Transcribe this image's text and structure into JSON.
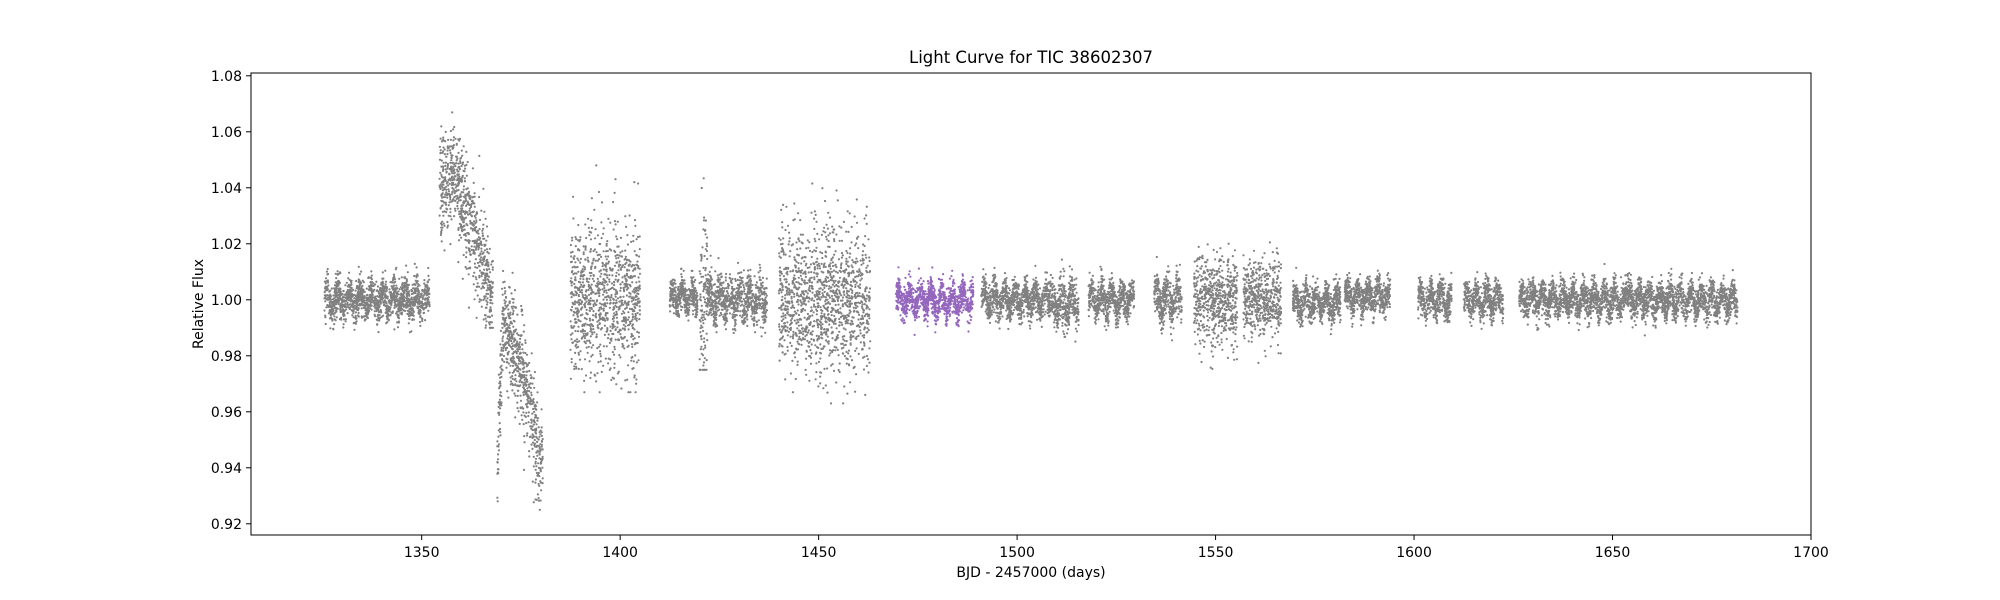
{
  "chart_data": {
    "type": "scatter",
    "title": "Light Curve for TIC 38602307",
    "xlabel": "BJD - 2457000 (days)",
    "ylabel": "Relative Flux",
    "xlim": [
      1307,
      1700
    ],
    "ylim": [
      0.916,
      1.081
    ],
    "xticks": [
      1350,
      1400,
      1450,
      1500,
      1550,
      1600,
      1650,
      1700
    ],
    "yticks": [
      0.92,
      0.94,
      0.96,
      0.98,
      1.0,
      1.02,
      1.04,
      1.06,
      1.08
    ],
    "ytick_decimals": 2,
    "grid": false,
    "legend": "none",
    "colors": {
      "default": "#808080",
      "highlight": "#9467bd"
    },
    "series": [
      {
        "highlighted": false,
        "segments": [
          {
            "x_start": 1325.5,
            "x_end": 1352.0,
            "base": 1.0,
            "scatter": 0.0035,
            "osc_amp": 0.003,
            "osc_period": 2.8
          },
          {
            "x_start": 1354.5,
            "x_end": 1368.0,
            "trend": [
              [
                1354.5,
                1.04
              ],
              [
                1358.0,
                1.045
              ],
              [
                1364.0,
                1.02
              ],
              [
                1368.0,
                1.0
              ]
            ],
            "scatter": 0.009,
            "outlier_min": 0.99,
            "outlier_max": 1.072
          },
          {
            "x_start": 1369.0,
            "x_end": 1380.5,
            "trend": [
              [
                1369.0,
                0.935
              ],
              [
                1370.5,
                0.995
              ],
              [
                1376.0,
                0.97
              ],
              [
                1380.5,
                0.94
              ]
            ],
            "scatter": 0.009,
            "outlier_min": 0.925,
            "outlier_max": 1.033
          },
          {
            "x_start": 1387.5,
            "x_end": 1405.0,
            "base": 1.0,
            "scatter": 0.013,
            "outlier_min": 0.967,
            "outlier_max": 1.048
          },
          {
            "x_start": 1412.5,
            "x_end": 1419.5,
            "base": 1.001,
            "scatter": 0.003,
            "osc_amp": 0.003,
            "osc_period": 2.5
          },
          {
            "x_start": 1420.0,
            "x_end": 1422.0,
            "base": 1.0,
            "scatter": 0.016,
            "outlier_min": 0.975,
            "outlier_max": 1.049
          },
          {
            "x_start": 1422.0,
            "x_end": 1437.0,
            "base": 1.0,
            "scatter": 0.004,
            "osc_amp": 0.003,
            "osc_period": 2.5
          },
          {
            "x_start": 1440.0,
            "x_end": 1463.0,
            "base": 1.0,
            "scatter": 0.013,
            "outlier_min": 0.963,
            "outlier_max": 1.048
          },
          {
            "x_start": 1491.0,
            "x_end": 1508.0,
            "base": 1.0,
            "scatter": 0.003,
            "osc_amp": 0.003,
            "osc_period": 2.6
          },
          {
            "x_start": 1508.0,
            "x_end": 1515.5,
            "base": 0.999,
            "scatter": 0.004,
            "osc_amp": 0.003,
            "osc_period": 2.6
          },
          {
            "x_start": 1518.0,
            "x_end": 1529.5,
            "base": 1.0,
            "scatter": 0.003,
            "osc_amp": 0.003,
            "osc_period": 2.6
          },
          {
            "x_start": 1534.5,
            "x_end": 1541.5,
            "base": 1.0,
            "scatter": 0.004,
            "osc_amp": 0.003,
            "osc_period": 2.6
          },
          {
            "x_start": 1544.5,
            "x_end": 1555.5,
            "base": 1.0,
            "scatter": 0.008,
            "outlier_min": 0.975,
            "outlier_max": 1.026
          },
          {
            "x_start": 1557.0,
            "x_end": 1566.5,
            "base": 1.0,
            "scatter": 0.007,
            "outlier_min": 0.972,
            "outlier_max": 1.021
          },
          {
            "x_start": 1569.5,
            "x_end": 1581.5,
            "base": 0.999,
            "scatter": 0.003,
            "osc_amp": 0.003,
            "osc_period": 2.6
          },
          {
            "x_start": 1582.5,
            "x_end": 1594.0,
            "base": 1.001,
            "scatter": 0.003,
            "osc_amp": 0.003,
            "osc_period": 2.6
          },
          {
            "x_start": 1601.0,
            "x_end": 1609.5,
            "base": 1.0,
            "scatter": 0.003,
            "osc_amp": 0.003,
            "osc_period": 2.6
          },
          {
            "x_start": 1612.5,
            "x_end": 1622.5,
            "base": 1.0,
            "scatter": 0.003,
            "osc_amp": 0.003,
            "osc_period": 2.6
          },
          {
            "x_start": 1626.5,
            "x_end": 1653.5,
            "base": 1.0,
            "scatter": 0.003,
            "osc_amp": 0.003,
            "osc_period": 2.6
          },
          {
            "x_start": 1653.5,
            "x_end": 1681.5,
            "base": 1.0,
            "scatter": 0.003,
            "osc_amp": 0.003,
            "osc_period": 2.6
          }
        ]
      },
      {
        "highlighted": true,
        "segments": [
          {
            "x_start": 1469.5,
            "x_end": 1489.0,
            "base": 1.0,
            "scatter": 0.003,
            "osc_amp": 0.003,
            "osc_period": 2.7
          }
        ]
      }
    ]
  }
}
